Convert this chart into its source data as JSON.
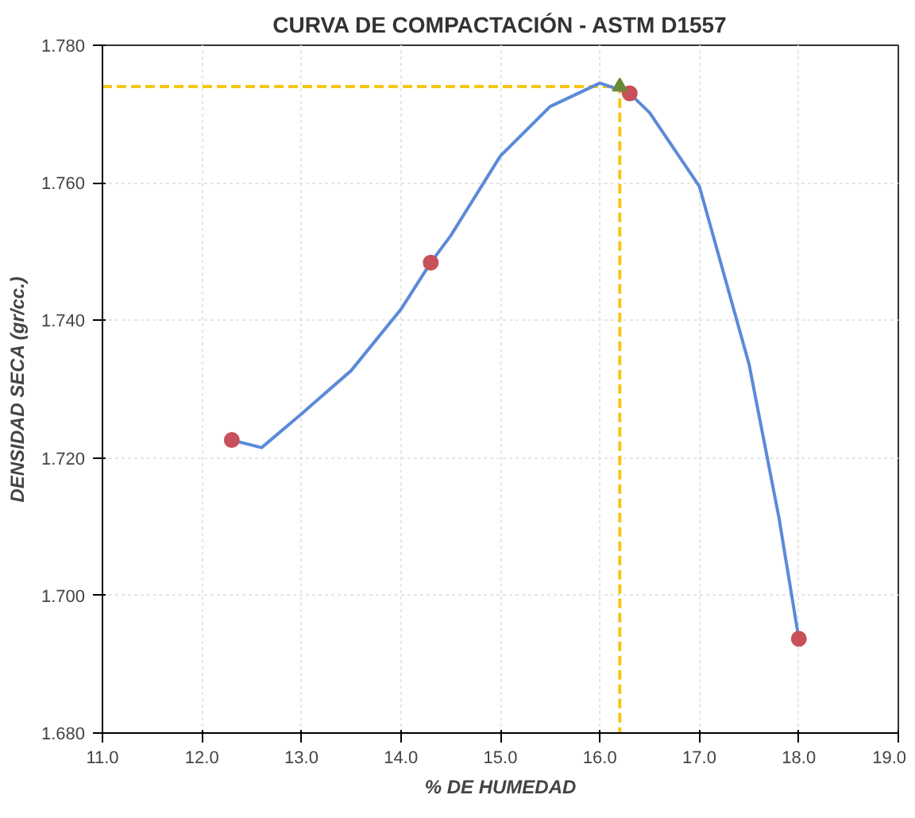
{
  "chart_data": {
    "type": "line",
    "title": "CURVA DE COMPACTACIÓN - ASTM D1557",
    "xlabel": "% DE HUMEDAD",
    "ylabel": "DENSIDAD SECA (gr/cc.)",
    "series": [
      {
        "color": "#f5c518",
        "line_style": "dashed",
        "marker": "none",
        "x": [
          11.0,
          16.2,
          16.2
        ],
        "values": [
          1.774,
          1.774,
          1.68
        ]
      },
      {
        "color": "#5b8ad8",
        "line_style": "solid",
        "marker": "none",
        "x": [
          12.3,
          12.6,
          13.0,
          13.5,
          14.0,
          14.3,
          14.5,
          15.0,
          15.5,
          16.0,
          16.3,
          16.5,
          17.0,
          17.5,
          17.8,
          18.0
        ],
        "values": [
          1.7226,
          1.7215,
          1.7264,
          1.7327,
          1.7416,
          1.7484,
          1.7523,
          1.7639,
          1.7711,
          1.7745,
          1.773,
          1.7702,
          1.7595,
          1.7336,
          1.7113,
          1.6937
        ]
      },
      {
        "type": "scatter",
        "color": "#c8505a",
        "marker": "circle",
        "x": [
          12.3,
          14.3,
          16.3,
          18.0
        ],
        "values": [
          1.7226,
          1.7484,
          1.773,
          1.6937
        ]
      },
      {
        "type": "scatter",
        "color": "#6a8a3a",
        "marker": "triangle",
        "x": [
          16.2
        ],
        "values": [
          1.774
        ]
      }
    ],
    "xlim": [
      11.0,
      19.0
    ],
    "xticks": [
      {
        "value": 11,
        "label": "11.0"
      },
      {
        "value": 12,
        "label": "12.0"
      },
      {
        "value": 13,
        "label": "13.0"
      },
      {
        "value": 14,
        "label": "14.0"
      },
      {
        "value": 15,
        "label": "15.0"
      },
      {
        "value": 16,
        "label": "16.0"
      },
      {
        "value": 17,
        "label": "17.0"
      },
      {
        "value": 18,
        "label": "18.0"
      },
      {
        "value": 19,
        "label": "19.0"
      }
    ],
    "ylim": [
      1.68,
      1.78
    ],
    "yticks": [
      {
        "value": 1.68,
        "label": "1.680"
      },
      {
        "value": 1.7,
        "label": "1.700"
      },
      {
        "value": 1.72,
        "label": "1.720"
      },
      {
        "value": 1.74,
        "label": "1.740"
      },
      {
        "value": 1.76,
        "label": "1.760"
      },
      {
        "value": 1.78,
        "label": "1.780"
      }
    ],
    "grid": true
  }
}
